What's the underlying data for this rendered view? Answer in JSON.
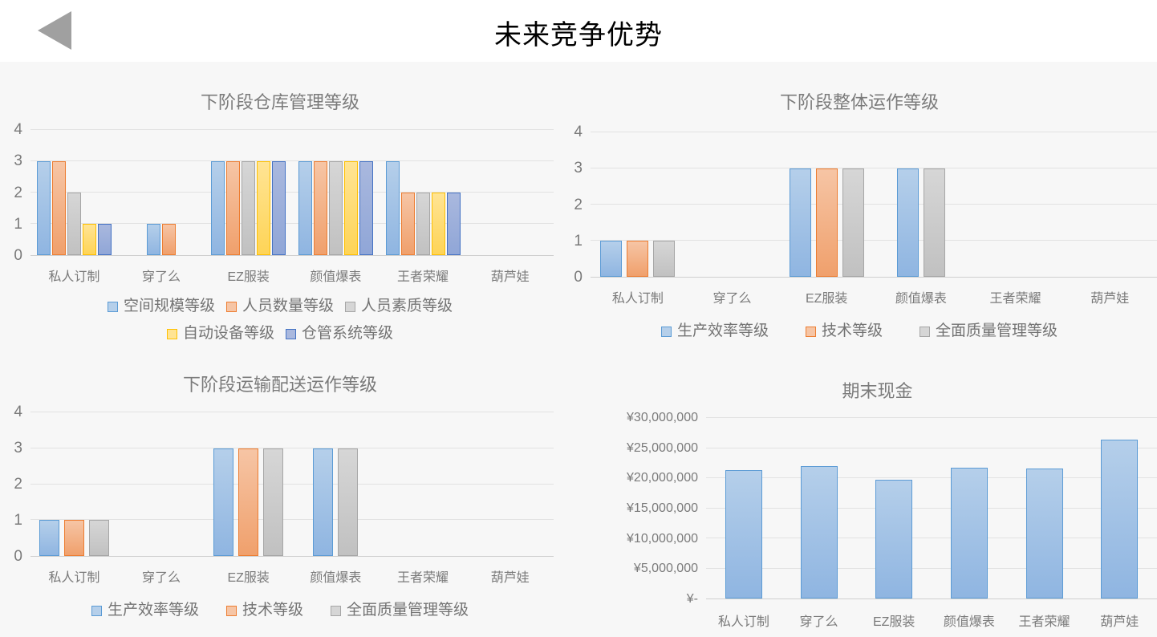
{
  "header": {
    "title": "未来竞争优势",
    "back_button": {
      "icon": "back-triangle",
      "color": "#a0a0a0"
    }
  },
  "palette": {
    "background": "#f7f7f7",
    "header_bg": "#ffffff",
    "chart_title_text": "#7b7b7b",
    "axis_text": "#7a7a7a",
    "gridline": "#e2e2e2",
    "axis_line": "#cfcfcf"
  },
  "chart_data": [
    {
      "id": "warehouse-level",
      "type": "bar",
      "title": "下阶段仓库管理等级",
      "categories": [
        "私人订制",
        "穿了么",
        "EZ服装",
        "颜值爆表",
        "王者荣耀",
        "葫芦娃"
      ],
      "ylim": [
        0,
        4
      ],
      "yticks": [
        0,
        1,
        2,
        3,
        4
      ],
      "ytick_labels": [
        "0",
        "1",
        "2",
        "3",
        "4"
      ],
      "grid": true,
      "legend_position": "bottom",
      "series": [
        {
          "name": "空间规模等级",
          "border": "#5b9bd5",
          "fill_top": "#b5cfea",
          "fill_bottom": "#8fb5e1",
          "values": [
            3,
            1,
            3,
            3,
            3,
            0
          ]
        },
        {
          "name": "人员数量等级",
          "border": "#ed7d31",
          "fill_top": "#f6c5a5",
          "fill_bottom": "#f0a06c",
          "values": [
            3,
            1,
            3,
            3,
            2,
            0
          ]
        },
        {
          "name": "人员素质等级",
          "border": "#a6a6a6",
          "fill_top": "#d6d6d6",
          "fill_bottom": "#c1c1c1",
          "values": [
            2,
            0,
            3,
            3,
            2,
            0
          ]
        },
        {
          "name": "自动设备等级",
          "border": "#ffc000",
          "fill_top": "#ffe494",
          "fill_bottom": "#fed457",
          "values": [
            1,
            0,
            3,
            3,
            2,
            0
          ]
        },
        {
          "name": "仓管系统等级",
          "border": "#4472c4",
          "fill_top": "#a9b8de",
          "fill_bottom": "#90a6d7",
          "values": [
            1,
            0,
            3,
            3,
            2,
            0
          ]
        }
      ]
    },
    {
      "id": "overall-operation-level",
      "type": "bar",
      "title": "下阶段整体运作等级",
      "categories": [
        "私人订制",
        "穿了么",
        "EZ服装",
        "颜值爆表",
        "王者荣耀",
        "葫芦娃"
      ],
      "ylim": [
        0,
        4
      ],
      "yticks": [
        0,
        1,
        2,
        3,
        4
      ],
      "ytick_labels": [
        "0",
        "1",
        "2",
        "3",
        "4"
      ],
      "grid": true,
      "legend_position": "bottom",
      "series": [
        {
          "name": "生产效率等级",
          "border": "#5b9bd5",
          "fill_top": "#b5cfea",
          "fill_bottom": "#8fb5e1",
          "values": [
            1,
            0,
            3,
            3,
            0,
            0
          ]
        },
        {
          "name": "技术等级",
          "border": "#ed7d31",
          "fill_top": "#f6c5a5",
          "fill_bottom": "#f0a06c",
          "values": [
            1,
            0,
            3,
            0,
            0,
            0
          ]
        },
        {
          "name": "全面质量管理等级",
          "border": "#a6a6a6",
          "fill_top": "#d6d6d6",
          "fill_bottom": "#c1c1c1",
          "values": [
            1,
            0,
            3,
            3,
            0,
            0
          ]
        }
      ]
    },
    {
      "id": "transport-delivery-level",
      "type": "bar",
      "title": "下阶段运输配送运作等级",
      "categories": [
        "私人订制",
        "穿了么",
        "EZ服装",
        "颜值爆表",
        "王者荣耀",
        "葫芦娃"
      ],
      "ylim": [
        0,
        4
      ],
      "yticks": [
        0,
        1,
        2,
        3,
        4
      ],
      "ytick_labels": [
        "0",
        "1",
        "2",
        "3",
        "4"
      ],
      "grid": true,
      "legend_position": "bottom",
      "series": [
        {
          "name": "生产效率等级",
          "border": "#5b9bd5",
          "fill_top": "#b5cfea",
          "fill_bottom": "#8fb5e1",
          "values": [
            1,
            0,
            3,
            3,
            0,
            0
          ]
        },
        {
          "name": "技术等级",
          "border": "#ed7d31",
          "fill_top": "#f6c5a5",
          "fill_bottom": "#f0a06c",
          "values": [
            1,
            0,
            3,
            0,
            0,
            0
          ]
        },
        {
          "name": "全面质量管理等级",
          "border": "#a6a6a6",
          "fill_top": "#d6d6d6",
          "fill_bottom": "#c1c1c1",
          "values": [
            1,
            0,
            3,
            3,
            0,
            0
          ]
        }
      ]
    },
    {
      "id": "ending-cash",
      "type": "bar",
      "title": "期末现金",
      "categories": [
        "私人订制",
        "穿了么",
        "EZ服装",
        "颜值爆表",
        "王者荣耀",
        "葫芦娃"
      ],
      "ylim": [
        0,
        30000000
      ],
      "yticks": [
        0,
        5000000,
        10000000,
        15000000,
        20000000,
        25000000,
        30000000
      ],
      "ytick_labels": [
        "¥-",
        "¥5,000,000",
        "¥10,000,000",
        "¥15,000,000",
        "¥20,000,000",
        "¥25,000,000",
        "¥30,000,000"
      ],
      "grid": true,
      "legend_position": "none",
      "series": [
        {
          "name": "期末现金",
          "border": "#5b9bd5",
          "fill_top": "#b5cfea",
          "fill_bottom": "#8fb5e1",
          "values": [
            21400000,
            22000000,
            19800000,
            21700000,
            21600000,
            26400000
          ]
        }
      ]
    }
  ]
}
